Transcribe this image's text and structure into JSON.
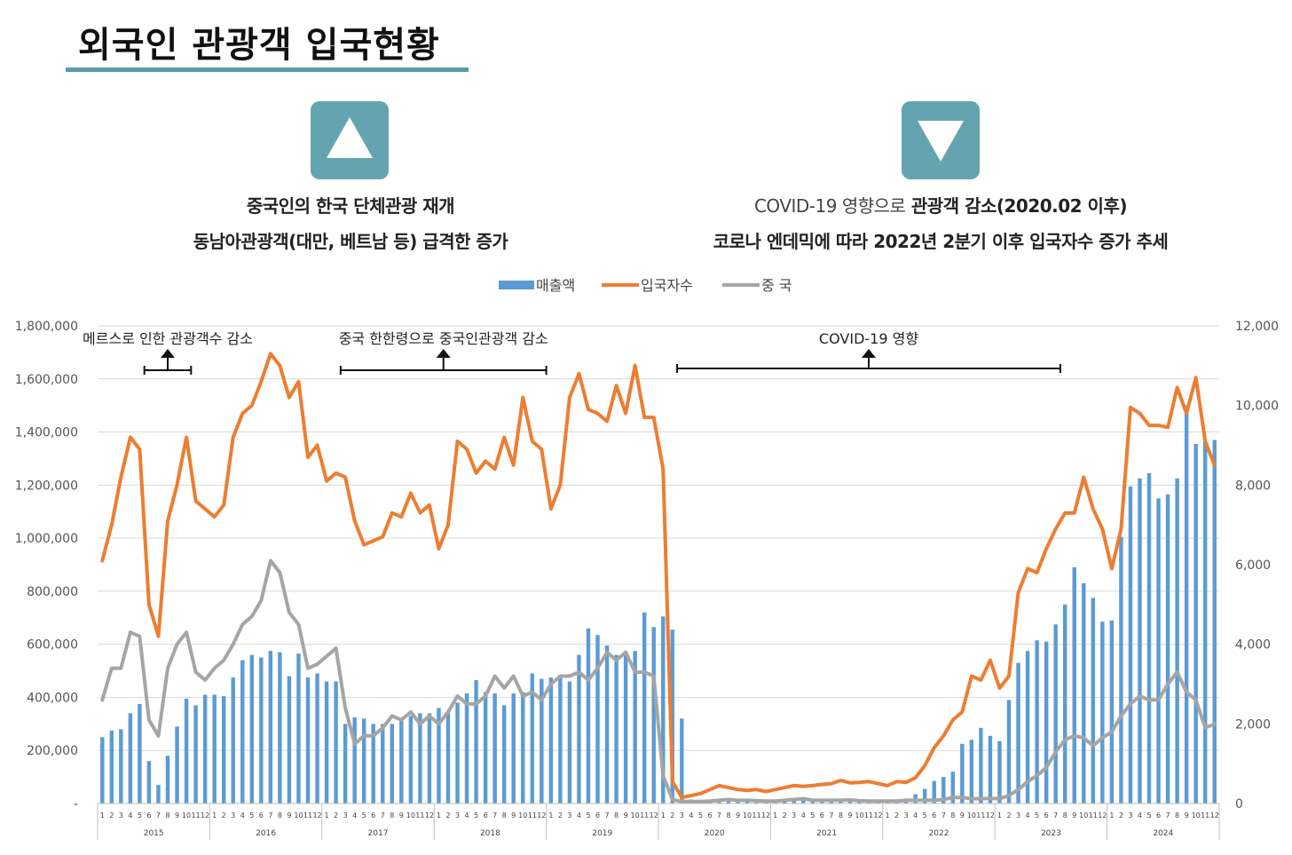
{
  "page": {
    "title": "외국인 관광객 입국현황",
    "left": {
      "icon": "up-triangle-icon",
      "line1": "중국인의 한국 단체관광 재개",
      "line2": "동남아관광객(대만, 베트남 등) 급격한 증가"
    },
    "right": {
      "icon": "down-triangle-icon",
      "line1_a": "COVID-19 영향으로",
      "line1_b": " 관광객 감소(2020.02 이후)",
      "line2": "코로나 엔데믹에 따라 2022년 2분기 이후 입국자수 증가 추세"
    }
  },
  "colors": {
    "accent": "#64a4b0",
    "bar": "#5b9bd5",
    "orange": "#ed7d31",
    "gray": "#a5a5a5"
  },
  "chart_data": {
    "type": "bar",
    "legend": [
      "매출액",
      "입국자수",
      "중 국"
    ],
    "legend_position": "top",
    "months": [
      "1",
      "2",
      "3",
      "4",
      "5",
      "6",
      "7",
      "8",
      "9",
      "10",
      "11",
      "12"
    ],
    "years": [
      "2015",
      "2016",
      "2017",
      "2018",
      "2019",
      "2020",
      "2021",
      "2022",
      "2023",
      "2024"
    ],
    "y_left": {
      "ticks": [
        "-",
        "200,000",
        "400,000",
        "600,000",
        "800,000",
        "1,000,000",
        "1,200,000",
        "1,400,000",
        "1,600,000",
        "1,800,000"
      ],
      "range": [
        0,
        1800000
      ]
    },
    "y_right": {
      "ticks": [
        "0",
        "2,000",
        "4,000",
        "6,000",
        "8,000",
        "10,000",
        "12,000"
      ],
      "range": [
        0,
        12000
      ]
    },
    "grid": true,
    "series": [
      {
        "name": "매출액",
        "kind": "bar",
        "axis": "left",
        "values": [
          250000,
          275000,
          280000,
          340000,
          375000,
          160000,
          70000,
          180000,
          290000,
          395000,
          370000,
          410000,
          410000,
          405000,
          475000,
          540000,
          560000,
          550000,
          575000,
          570000,
          480000,
          565000,
          475000,
          490000,
          460000,
          460000,
          300000,
          325000,
          320000,
          300000,
          300000,
          300000,
          310000,
          330000,
          340000,
          340000,
          360000,
          345000,
          380000,
          415000,
          465000,
          420000,
          415000,
          370000,
          415000,
          420000,
          490000,
          470000,
          475000,
          485000,
          460000,
          560000,
          660000,
          635000,
          595000,
          560000,
          565000,
          575000,
          720000,
          665000,
          705000,
          655000,
          320000,
          15000,
          10000,
          8000,
          7000,
          8000,
          8000,
          9000,
          9000,
          8000,
          8000,
          9000,
          10000,
          12000,
          12000,
          12000,
          12000,
          12000,
          14000,
          12000,
          10000,
          9000,
          9000,
          10000,
          15000,
          35000,
          55000,
          85000,
          100000,
          120000,
          225000,
          240000,
          285000,
          255000,
          235000,
          390000,
          530000,
          575000,
          615000,
          610000,
          675000,
          750000,
          890000,
          830000,
          775000,
          685000,
          690000,
          1005000,
          1195000,
          1225000,
          1245000,
          1150000,
          1165000,
          1225000,
          1500000,
          1355000,
          1365000,
          1370000
        ]
      },
      {
        "name": "입국자수",
        "kind": "line",
        "axis": "right",
        "values": [
          6100,
          7000,
          8200,
          9200,
          8900,
          5000,
          4200,
          7100,
          8000,
          9200,
          7600,
          7400,
          7200,
          7500,
          9200,
          9800,
          10000,
          10600,
          11300,
          11000,
          10200,
          10600,
          8700,
          9000,
          8100,
          8300,
          8200,
          7100,
          6500,
          6600,
          6700,
          7300,
          7200,
          7800,
          7300,
          7500,
          6400,
          7000,
          9100,
          8900,
          8300,
          8600,
          8400,
          9200,
          8500,
          10200,
          9100,
          8900,
          7400,
          8000,
          10200,
          10800,
          9900,
          9800,
          9600,
          10500,
          9800,
          11000,
          9700,
          9700,
          8400,
          550,
          150,
          200,
          250,
          350,
          450,
          400,
          350,
          330,
          350,
          300,
          350,
          400,
          450,
          430,
          450,
          480,
          500,
          580,
          520,
          530,
          550,
          500,
          450,
          550,
          530,
          650,
          950,
          1400,
          1700,
          2100,
          2300,
          3200,
          3100,
          3600,
          2900,
          3200,
          5300,
          5900,
          5800,
          6400,
          6900,
          7300,
          7300,
          8200,
          7400,
          6900,
          5900,
          6900,
          9950,
          9800,
          9500,
          9500,
          9450,
          10450,
          9800,
          10700,
          9100,
          8500
        ]
      },
      {
        "name": "중 국",
        "kind": "line",
        "axis": "right",
        "values": [
          2600,
          3400,
          3400,
          4300,
          4200,
          2100,
          1700,
          3400,
          4000,
          4300,
          3300,
          3100,
          3400,
          3600,
          4000,
          4500,
          4700,
          5100,
          6100,
          5800,
          4800,
          4500,
          3400,
          3500,
          3700,
          3900,
          2400,
          1500,
          1700,
          1700,
          1900,
          2200,
          2100,
          2300,
          2000,
          2200,
          2000,
          2300,
          2700,
          2500,
          2500,
          2700,
          3200,
          2900,
          3200,
          2700,
          2800,
          2600,
          3000,
          3200,
          3200,
          3300,
          3100,
          3400,
          3800,
          3600,
          3800,
          3300,
          3300,
          3200,
          700,
          100,
          50,
          50,
          50,
          60,
          80,
          100,
          80,
          80,
          70,
          60,
          60,
          80,
          100,
          120,
          80,
          80,
          80,
          80,
          90,
          70,
          60,
          60,
          60,
          60,
          80,
          80,
          80,
          80,
          100,
          150,
          150,
          120,
          120,
          130,
          120,
          200,
          350,
          550,
          700,
          900,
          1300,
          1600,
          1700,
          1650,
          1450,
          1650,
          1800,
          2200,
          2500,
          2700,
          2600,
          2600,
          3000,
          3300,
          2800,
          2600,
          1900,
          2000
        ]
      }
    ],
    "annotations": [
      {
        "text": "메르스로 인한 관광객수 감소",
        "from": "2015-06",
        "to": "2015-10"
      },
      {
        "text": "중국 한한령으로 중국인관광객 감소",
        "from": "2017-03",
        "to": "2018-12"
      },
      {
        "text": "COVID-19 영향",
        "from": "2020-03",
        "to": "2023-07"
      }
    ]
  }
}
